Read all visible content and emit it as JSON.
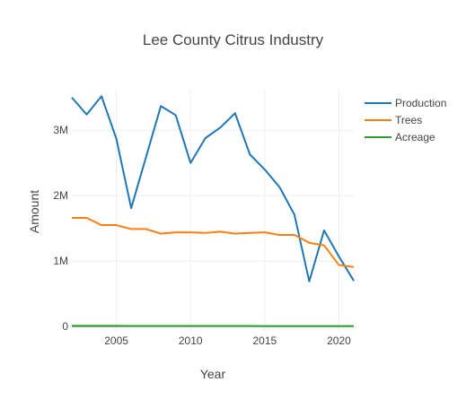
{
  "chart_data": {
    "type": "line",
    "title": "Lee County Citrus Industry",
    "xlabel": "Year",
    "ylabel": "Amount",
    "xlim": [
      2002,
      2021
    ],
    "ylim": [
      -80000,
      3620000
    ],
    "x_ticks": [
      2005,
      2010,
      2015,
      2020
    ],
    "x_tick_labels": [
      "2005",
      "2010",
      "2015",
      "2020"
    ],
    "y_ticks": [
      0,
      1000000,
      2000000,
      3000000
    ],
    "y_tick_labels": [
      "0",
      "1M",
      "2M",
      "3M"
    ],
    "grid": true,
    "legend_position": "top-right",
    "x": [
      2002,
      2003,
      2004,
      2005,
      2006,
      2007,
      2008,
      2009,
      2010,
      2011,
      2012,
      2013,
      2014,
      2015,
      2016,
      2017,
      2018,
      2019,
      2020,
      2021
    ],
    "series": [
      {
        "name": "Production",
        "color": "#1f77b4",
        "values": [
          3500000,
          3240000,
          3520000,
          2870000,
          1810000,
          2590000,
          3370000,
          3230000,
          2500000,
          2880000,
          3040000,
          3260000,
          2630000,
          2400000,
          2130000,
          1710000,
          690000,
          1470000,
          1070000,
          700000
        ]
      },
      {
        "name": "Trees",
        "color": "#ff7f0e",
        "values": [
          1660000,
          1660000,
          1550000,
          1550000,
          1490000,
          1490000,
          1420000,
          1440000,
          1440000,
          1430000,
          1450000,
          1420000,
          1430000,
          1440000,
          1400000,
          1400000,
          1280000,
          1240000,
          940000,
          910000
        ]
      },
      {
        "name": "Acreage",
        "color": "#2ca02c",
        "values": [
          10500,
          10500,
          10200,
          10000,
          9800,
          9600,
          9400,
          9200,
          9000,
          8800,
          8600,
          8400,
          8200,
          8000,
          7800,
          7600,
          7400,
          7200,
          7000,
          6800
        ]
      }
    ]
  }
}
